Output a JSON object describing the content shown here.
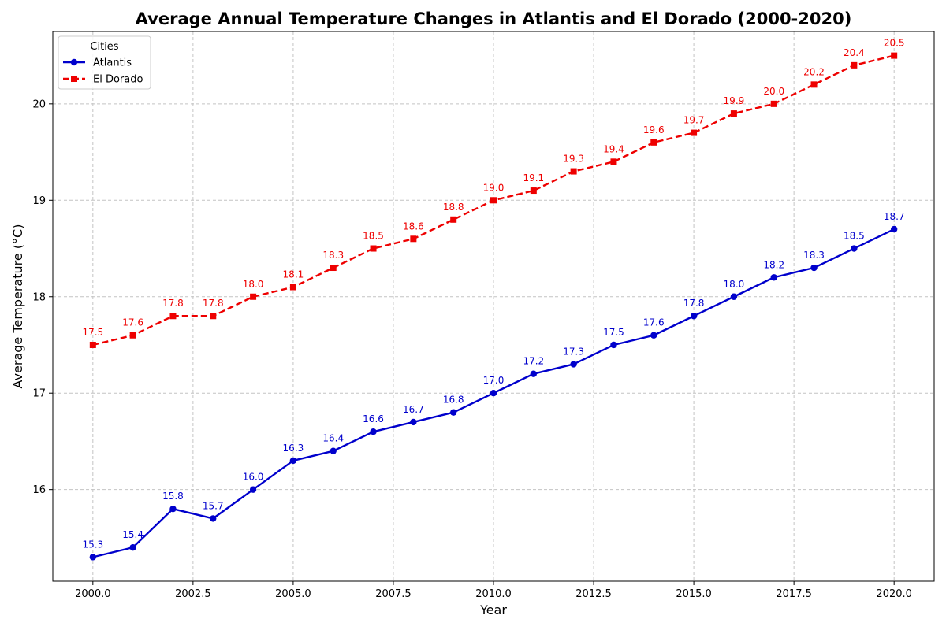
{
  "chart_data": {
    "type": "line",
    "title": "Average Annual Temperature Changes in Atlantis and El Dorado (2000-2020)",
    "xlabel": "Year",
    "ylabel": "Average Temperature (°C)",
    "x": [
      2000,
      2001,
      2002,
      2003,
      2004,
      2005,
      2006,
      2007,
      2008,
      2009,
      2010,
      2011,
      2012,
      2013,
      2014,
      2015,
      2016,
      2017,
      2018,
      2019,
      2020
    ],
    "xlim": [
      1999,
      2021
    ],
    "ylim": [
      15.05,
      20.75
    ],
    "xticks": [
      2000.0,
      2002.5,
      2005.0,
      2007.5,
      2010.0,
      2012.5,
      2015.0,
      2017.5,
      2020.0
    ],
    "xtick_labels": [
      "2000.0",
      "2002.5",
      "2005.0",
      "2007.5",
      "2010.0",
      "2012.5",
      "2015.0",
      "2017.5",
      "2020.0"
    ],
    "yticks": [
      16,
      17,
      18,
      19,
      20
    ],
    "ytick_labels": [
      "16",
      "17",
      "18",
      "19",
      "20"
    ],
    "grid": true,
    "legend": {
      "title": "Cities",
      "placement": "top-left"
    },
    "series": [
      {
        "name": "Atlantis",
        "color": "#0000cc",
        "line_style": "solid",
        "marker": "circle",
        "values": [
          15.3,
          15.4,
          15.8,
          15.7,
          16.0,
          16.3,
          16.4,
          16.6,
          16.7,
          16.8,
          17.0,
          17.2,
          17.3,
          17.5,
          17.6,
          17.8,
          18.0,
          18.2,
          18.3,
          18.5,
          18.7
        ],
        "labels": [
          "15.3",
          "15.4",
          "15.8",
          "15.7",
          "16.0",
          "16.3",
          "16.4",
          "16.6",
          "16.7",
          "16.8",
          "17.0",
          "17.2",
          "17.3",
          "17.5",
          "17.6",
          "17.8",
          "18.0",
          "18.2",
          "18.3",
          "18.5",
          "18.7"
        ]
      },
      {
        "name": "El Dorado",
        "color": "#ee0000",
        "line_style": "dashed",
        "marker": "square",
        "values": [
          17.5,
          17.6,
          17.8,
          17.8,
          18.0,
          18.1,
          18.3,
          18.5,
          18.6,
          18.8,
          19.0,
          19.1,
          19.3,
          19.4,
          19.6,
          19.7,
          19.9,
          20.0,
          20.2,
          20.4,
          20.5
        ],
        "labels": [
          "17.5",
          "17.6",
          "17.8",
          "17.8",
          "18.0",
          "18.1",
          "18.3",
          "18.5",
          "18.6",
          "18.8",
          "19.0",
          "19.1",
          "19.3",
          "19.4",
          "19.6",
          "19.7",
          "19.9",
          "20.0",
          "20.2",
          "20.4",
          "20.5"
        ]
      }
    ]
  }
}
